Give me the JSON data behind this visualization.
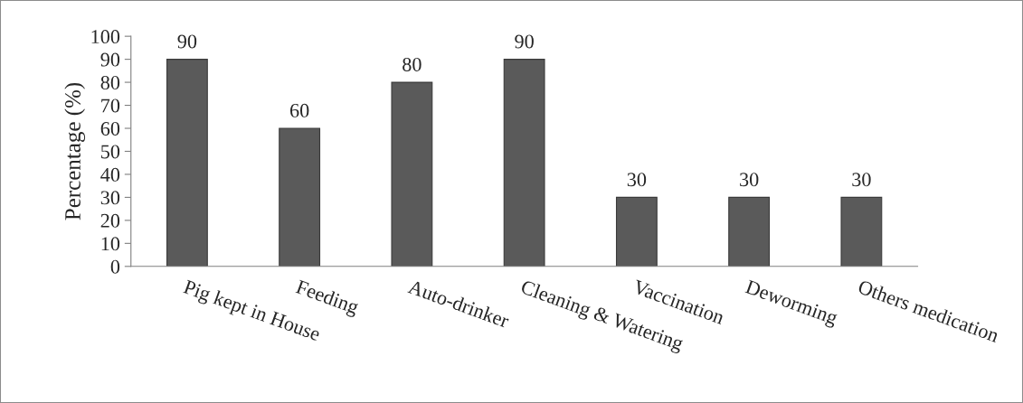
{
  "chart_data": {
    "type": "bar",
    "categories": [
      "Pig kept in House",
      "Feeding",
      "Auto-drinker",
      "Cleaning & Watering",
      "Vaccination",
      "Deworming",
      "Others medication"
    ],
    "values": [
      90,
      60,
      80,
      90,
      30,
      30,
      30
    ],
    "color": "#5a5a5a",
    "ylabel": "Percentage (%)",
    "ylim": [
      0,
      100
    ],
    "yticks": [
      0,
      10,
      20,
      30,
      40,
      50,
      60,
      70,
      80,
      90,
      100
    ],
    "data_labels": true,
    "grid": false
  }
}
